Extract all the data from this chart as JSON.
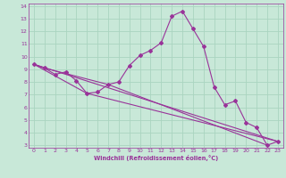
{
  "xlabel": "Windchill (Refroidissement éolien,°C)",
  "background_color": "#c8e8d8",
  "grid_color": "#aad4c0",
  "line_color": "#993399",
  "xlim": [
    -0.5,
    23.5
  ],
  "ylim": [
    2.8,
    14.2
  ],
  "yticks": [
    3,
    4,
    5,
    6,
    7,
    8,
    9,
    10,
    11,
    12,
    13,
    14
  ],
  "xticks": [
    0,
    1,
    2,
    3,
    4,
    5,
    6,
    7,
    8,
    9,
    10,
    11,
    12,
    13,
    14,
    15,
    16,
    17,
    18,
    19,
    20,
    21,
    22,
    23
  ],
  "line1_x": [
    0,
    1,
    2,
    3,
    4,
    5,
    6,
    7,
    8,
    9,
    10,
    11,
    12,
    13,
    14,
    15,
    16,
    17,
    18,
    19,
    20,
    21,
    22,
    23
  ],
  "line1_y": [
    9.4,
    9.1,
    8.6,
    8.8,
    8.1,
    7.1,
    7.2,
    7.8,
    8.0,
    9.3,
    10.1,
    10.5,
    11.1,
    13.2,
    13.6,
    12.2,
    10.8,
    7.6,
    6.2,
    6.5,
    4.8,
    4.4,
    3.0,
    3.3
  ],
  "line2_x": [
    0,
    1,
    7,
    22
  ],
  "line2_y": [
    9.4,
    9.1,
    7.8,
    3.0
  ],
  "line3_x": [
    0,
    23
  ],
  "line3_y": [
    9.4,
    3.3
  ],
  "line4_x": [
    0,
    5,
    23
  ],
  "line4_y": [
    9.4,
    7.1,
    3.3
  ]
}
